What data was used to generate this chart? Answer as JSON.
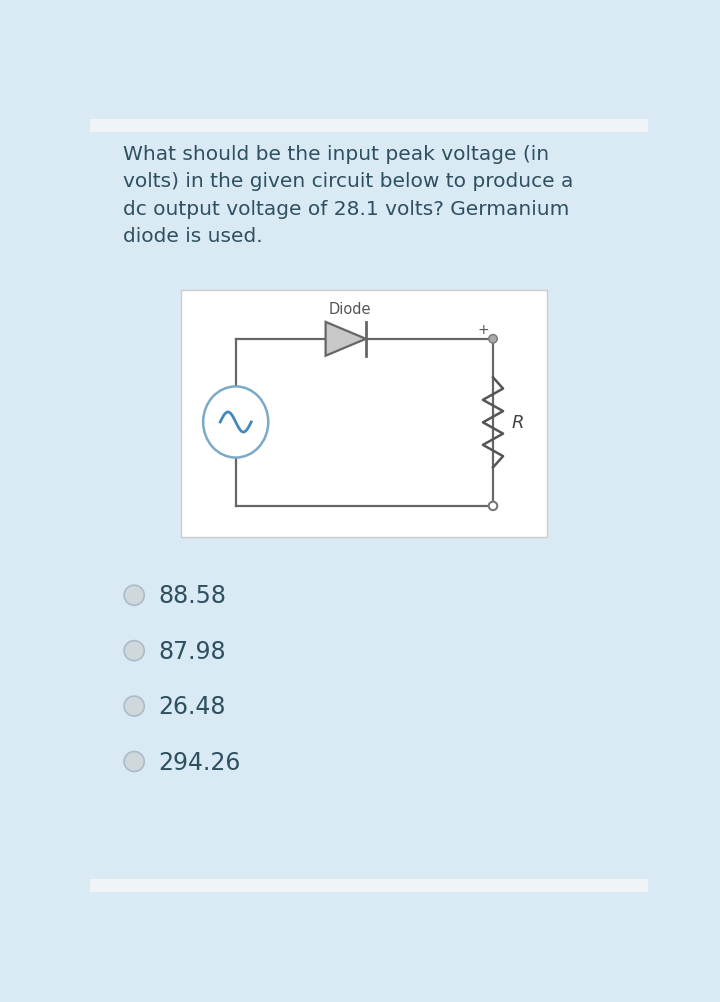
{
  "background_color": "#daeaf4",
  "question_text": "What should be the input peak voltage (in\nvolts) in the given circuit below to produce a\ndc output voltage of 28.1 volts? Germanium\ndiode is used.",
  "question_fontsize": 14.5,
  "question_color": "#2e5060",
  "circuit_bg": "#ffffff",
  "diode_label": "Diode",
  "resistor_label": "R",
  "choices": [
    "88.58",
    "87.98",
    "26.48",
    "294.26"
  ],
  "choice_fontsize": 17,
  "choice_color": "#2e5060",
  "wire_color": "#666666",
  "diode_fill": "#c8c8c8",
  "diode_edge": "#666666",
  "resistor_color": "#555555",
  "dot_color": "#888888",
  "src_edge": "#7aaac8",
  "sine_color": "#4488bb",
  "plus_color": "#555555",
  "radio_face": "#d0d8dc",
  "radio_edge": "#aabbcc"
}
